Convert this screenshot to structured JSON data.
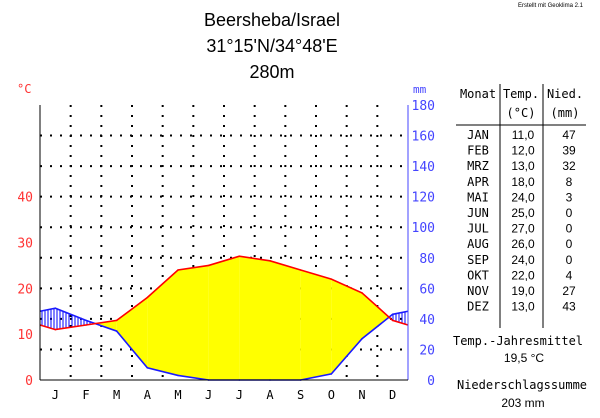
{
  "credit": "Erstellt mit Geoklima 2.1",
  "chart_data": {
    "type": "climate-diagram",
    "title": "Beersheba/Israel",
    "coordinates": "31°15'N/34°48'E",
    "elevation": "280m",
    "months": [
      "J",
      "F",
      "M",
      "A",
      "M",
      "J",
      "J",
      "A",
      "S",
      "O",
      "N",
      "D"
    ],
    "temp_axis": {
      "unit": "°C",
      "ticks": [
        "0",
        "10",
        "20",
        "30",
        "40"
      ],
      "range": [
        0,
        60
      ],
      "color": "#ff0000"
    },
    "precip_axis": {
      "unit": "mm",
      "ticks": [
        "0",
        "20",
        "40",
        "60",
        "80",
        "100",
        "120",
        "140",
        "160",
        "180"
      ],
      "range": [
        0,
        180
      ],
      "color": "#0000ff"
    },
    "temperature": [
      11.0,
      12.0,
      13.0,
      18.0,
      24.0,
      25.0,
      27.0,
      26.0,
      24.0,
      22.0,
      19.0,
      13.0
    ],
    "precipitation": [
      47,
      39,
      32,
      8,
      3,
      0,
      0,
      0,
      0,
      4,
      27,
      43
    ],
    "arid_color": "#ffff00",
    "humid_color": "#0000ff",
    "grid": true,
    "table": {
      "header": {
        "month": "Monat",
        "temp": "Temp.",
        "temp_unit": "(°C)",
        "precip": "Nied.",
        "precip_unit": "(mm)"
      },
      "rows": [
        {
          "month": "JAN",
          "temp": "11,0",
          "precip": "47"
        },
        {
          "month": "FEB",
          "temp": "12,0",
          "precip": "39"
        },
        {
          "month": "MRZ",
          "temp": "13,0",
          "precip": "32"
        },
        {
          "month": "APR",
          "temp": "18,0",
          "precip": "8"
        },
        {
          "month": "MAI",
          "temp": "24,0",
          "precip": "3"
        },
        {
          "month": "JUN",
          "temp": "25,0",
          "precip": "0"
        },
        {
          "month": "JUL",
          "temp": "27,0",
          "precip": "0"
        },
        {
          "month": "AUG",
          "temp": "26,0",
          "precip": "0"
        },
        {
          "month": "SEP",
          "temp": "24,0",
          "precip": "0"
        },
        {
          "month": "OKT",
          "temp": "22,0",
          "precip": "4"
        },
        {
          "month": "NOV",
          "temp": "19,0",
          "precip": "27"
        },
        {
          "month": "DEZ",
          "temp": "13,0",
          "precip": "43"
        }
      ],
      "annual_temp_label": "Temp.-Jahresmittel",
      "annual_temp_value": "19,5 °C",
      "annual_precip_label": "Niederschlagssumme",
      "annual_precip_value": "203 mm"
    }
  }
}
